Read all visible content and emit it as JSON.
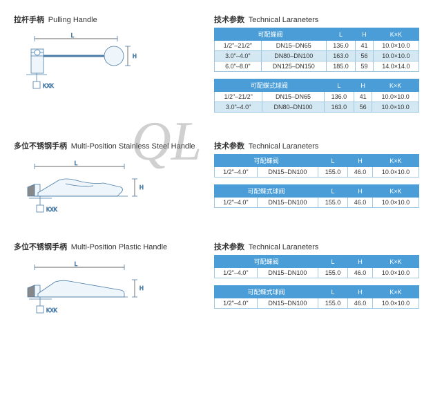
{
  "watermark": "QL",
  "sections": [
    {
      "title_cn": "拉杆手柄",
      "title_en": "Pulling Handle",
      "drawing": "pulling",
      "dims": {
        "L": "L",
        "H": "H",
        "KXK": "KXK"
      },
      "param_title_cn": "技术参数",
      "param_title_en": "Technical Laraneters",
      "tables": [
        {
          "headers": [
            "可配蝶阀",
            "",
            "L",
            "H",
            "K×K"
          ],
          "merge_first": true,
          "rows": [
            {
              "cells": [
                "1/2\"–21/2\"",
                "DN15–DN65",
                "136.0",
                "41",
                "10.0×10.0"
              ],
              "alt": false
            },
            {
              "cells": [
                "3.0\"–4.0\"",
                "DN80–DN100",
                "163.0",
                "56",
                "10.0×10.0"
              ],
              "alt": true
            },
            {
              "cells": [
                "6.0\"–8.0\"",
                "DN125–DN150",
                "185.0",
                "59",
                "14.0×14.0"
              ],
              "alt": false
            }
          ]
        },
        {
          "headers": [
            "可配蝶式球阀",
            "",
            "L",
            "H",
            "K×K"
          ],
          "merge_first": true,
          "rows": [
            {
              "cells": [
                "1/2\"–21/2\"",
                "DN15–DN65",
                "136.0",
                "41",
                "10.0×10.0"
              ],
              "alt": false
            },
            {
              "cells": [
                "3.0\"–4.0\"",
                "DN80–DN100",
                "163.0",
                "56",
                "10.0×10.0"
              ],
              "alt": true
            }
          ]
        }
      ]
    },
    {
      "title_cn": "多位不锈钢手柄",
      "title_en": "Multi-Position Stainless Steel Handle",
      "drawing": "multi",
      "dims": {
        "L": "L",
        "H": "H",
        "KXK": "KXK"
      },
      "param_title_cn": "技术参数",
      "param_title_en": "Technical Laraneters",
      "tables": [
        {
          "headers": [
            "可配蝶阀",
            "",
            "L",
            "H",
            "K×K"
          ],
          "merge_first": true,
          "rows": [
            {
              "cells": [
                "1/2\"–4.0\"",
                "DN15–DN100",
                "155.0",
                "46.0",
                "10.0×10.0"
              ],
              "alt": false
            }
          ]
        },
        {
          "headers": [
            "可配蝶式球阀",
            "",
            "L",
            "H",
            "K×K"
          ],
          "merge_first": true,
          "rows": [
            {
              "cells": [
                "1/2\"–4.0\"",
                "DN15–DN100",
                "155.0",
                "46.0",
                "10.0×10.0"
              ],
              "alt": false
            }
          ]
        }
      ]
    },
    {
      "title_cn": "多位不锈钢手柄",
      "title_en": "Multi-Position Plastic Handle",
      "drawing": "plastic",
      "dims": {
        "L": "L",
        "H": "H",
        "KXK": "KXK"
      },
      "param_title_cn": "技术参数",
      "param_title_en": "Technical Laraneters",
      "tables": [
        {
          "headers": [
            "可配蝶阀",
            "",
            "L",
            "H",
            "K×K"
          ],
          "merge_first": true,
          "rows": [
            {
              "cells": [
                "1/2\"–4.0\"",
                "DN15–DN100",
                "155.0",
                "46.0",
                "10.0×10.0"
              ],
              "alt": false
            }
          ]
        },
        {
          "headers": [
            "可配蝶式球阀",
            "",
            "L",
            "H",
            "K×K"
          ],
          "merge_first": true,
          "rows": [
            {
              "cells": [
                "1/2\"–4.0\"",
                "DN15–DN100",
                "155.0",
                "46.0",
                "10.0×10.0"
              ],
              "alt": false
            }
          ]
        }
      ]
    }
  ],
  "colors": {
    "header_bg": "#4a9dd6",
    "header_text": "#ffffff",
    "cell_border": "#a0c8e0",
    "alt_row_bg": "#d4e8f4",
    "text": "#333333"
  }
}
